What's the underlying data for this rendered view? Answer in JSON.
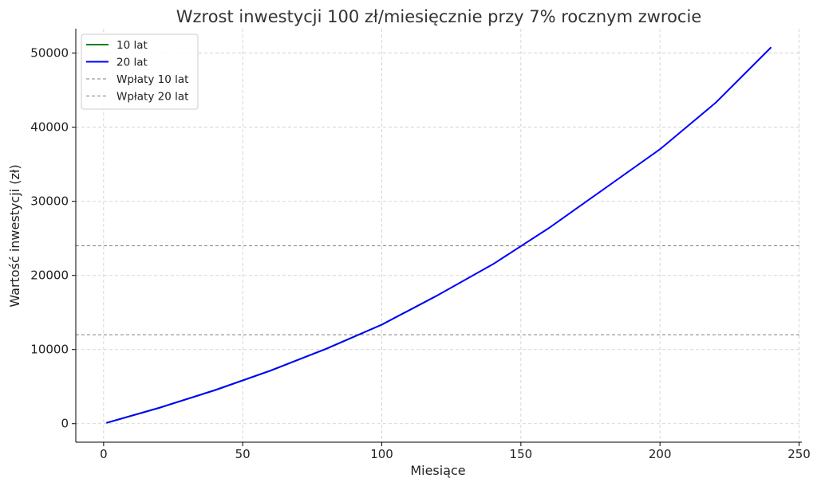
{
  "chart_data": {
    "type": "line",
    "title": "Wzrost inwestycji 100 zł/miesięcznie przy 7% rocznym zwrocie",
    "xlabel": "Miesiące",
    "ylabel": "Wartość inwestycji (zł)",
    "xlim": [
      -10,
      251
    ],
    "ylim": [
      -2500,
      53300
    ],
    "xticks": [
      0,
      50,
      100,
      150,
      200,
      250
    ],
    "yticks": [
      0,
      10000,
      20000,
      30000,
      40000,
      50000
    ],
    "grid": true,
    "legend_position": "top-left",
    "series": [
      {
        "name": "10 lat",
        "color": "#008000",
        "style": "solid",
        "x": [
          1,
          20,
          40,
          60,
          80,
          100,
          120
        ],
        "y": [
          100,
          2138,
          4515,
          7159,
          10099,
          13361,
          17308
        ]
      },
      {
        "name": "20 lat",
        "color": "#0000ff",
        "style": "solid",
        "x": [
          1,
          20,
          40,
          60,
          80,
          100,
          120,
          140,
          160,
          180,
          200,
          220,
          240
        ],
        "y": [
          100,
          2138,
          4515,
          7159,
          10099,
          13361,
          17308,
          21525,
          26379,
          31700,
          37030,
          43300,
          50800
        ]
      },
      {
        "name": "Wpłaty 10 lat",
        "color": "#808080",
        "style": "dashed",
        "hline": 12000
      },
      {
        "name": "Wpłaty 20 lat",
        "color": "#808080",
        "style": "dashed",
        "hline": 24000
      }
    ]
  }
}
